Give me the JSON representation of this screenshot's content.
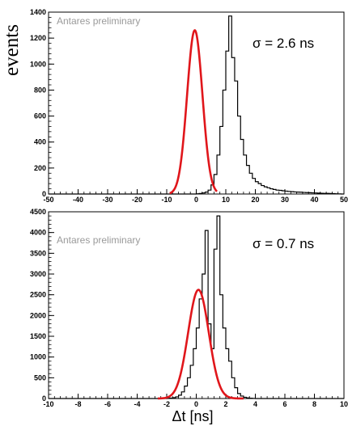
{
  "chart_data": [
    {
      "type": "histogram",
      "watermark": "Antares preliminary",
      "annotation": "σ = 2.6 ns",
      "ylabel": "events",
      "xlabel": "",
      "xlim": [
        -50,
        50
      ],
      "ylim": [
        0,
        1400
      ],
      "xticks": [
        -50,
        -40,
        -30,
        -20,
        -10,
        0,
        10,
        20,
        30,
        40,
        50
      ],
      "yticks": [
        0,
        200,
        400,
        600,
        800,
        1000,
        1200,
        1400
      ],
      "bin_start": -50,
      "bin_width": 1,
      "histogram": [
        0,
        0,
        0,
        0,
        0,
        0,
        0,
        0,
        0,
        0,
        0,
        0,
        0,
        0,
        0,
        0,
        0,
        0,
        0,
        0,
        0,
        0,
        0,
        0,
        0,
        0,
        0,
        0,
        0,
        0,
        0,
        0,
        0,
        0,
        0,
        0,
        0,
        0,
        0,
        0,
        0,
        0,
        0,
        0,
        0,
        0,
        0,
        0,
        0,
        0,
        2,
        4,
        8,
        15,
        30,
        70,
        150,
        300,
        520,
        800,
        1100,
        1370,
        1050,
        870,
        600,
        420,
        300,
        220,
        160,
        120,
        95,
        80,
        65,
        55,
        48,
        40,
        35,
        30,
        28,
        25,
        22,
        20,
        18,
        16,
        15,
        14,
        12,
        11,
        10,
        9,
        8,
        7,
        6,
        5,
        5,
        4,
        3,
        2,
        1,
        0
      ],
      "hist_color": "#000000",
      "fit": {
        "function": "gaussian",
        "amplitude": 1260,
        "mean": -0.5,
        "sigma": 2.6,
        "range": [
          -9,
          7
        ],
        "color": "#e0161b"
      }
    },
    {
      "type": "histogram",
      "watermark": "Antares preliminary",
      "annotation": "σ = 0.7 ns",
      "ylabel": "",
      "xlabel": "Δt [ns]",
      "xlim": [
        -10,
        10
      ],
      "ylim": [
        0,
        4500
      ],
      "xticks": [
        -10,
        -8,
        -6,
        -4,
        -2,
        0,
        2,
        4,
        6,
        8,
        10
      ],
      "yticks": [
        0,
        500,
        1000,
        1500,
        2000,
        2500,
        3000,
        3500,
        4000,
        4500
      ],
      "bin_start": -10,
      "bin_width": 0.2,
      "histogram": [
        0,
        0,
        0,
        0,
        0,
        0,
        0,
        0,
        0,
        0,
        0,
        0,
        0,
        0,
        0,
        0,
        0,
        0,
        0,
        0,
        0,
        0,
        0,
        0,
        0,
        0,
        0,
        0,
        0,
        0,
        0,
        0,
        0,
        0,
        0,
        0,
        0,
        0,
        0,
        0,
        5,
        10,
        20,
        40,
        80,
        160,
        300,
        500,
        800,
        1200,
        1700,
        2400,
        3000,
        4050,
        1800,
        1200,
        3600,
        4400,
        2500,
        1700,
        1200,
        900,
        500,
        260,
        120,
        60,
        30,
        15,
        8,
        3,
        0,
        0,
        0,
        0,
        0,
        0,
        0,
        0,
        0,
        0,
        0,
        0,
        0,
        0,
        0,
        0,
        0,
        0,
        0,
        0,
        0,
        0,
        0,
        0,
        0,
        0,
        0,
        0,
        0,
        0
      ],
      "hist_color": "#000000",
      "fit": {
        "function": "gaussian",
        "amplitude": 2620,
        "mean": 0.15,
        "sigma": 0.7,
        "range": [
          -2.6,
          3.2
        ],
        "color": "#e0161b"
      }
    }
  ]
}
